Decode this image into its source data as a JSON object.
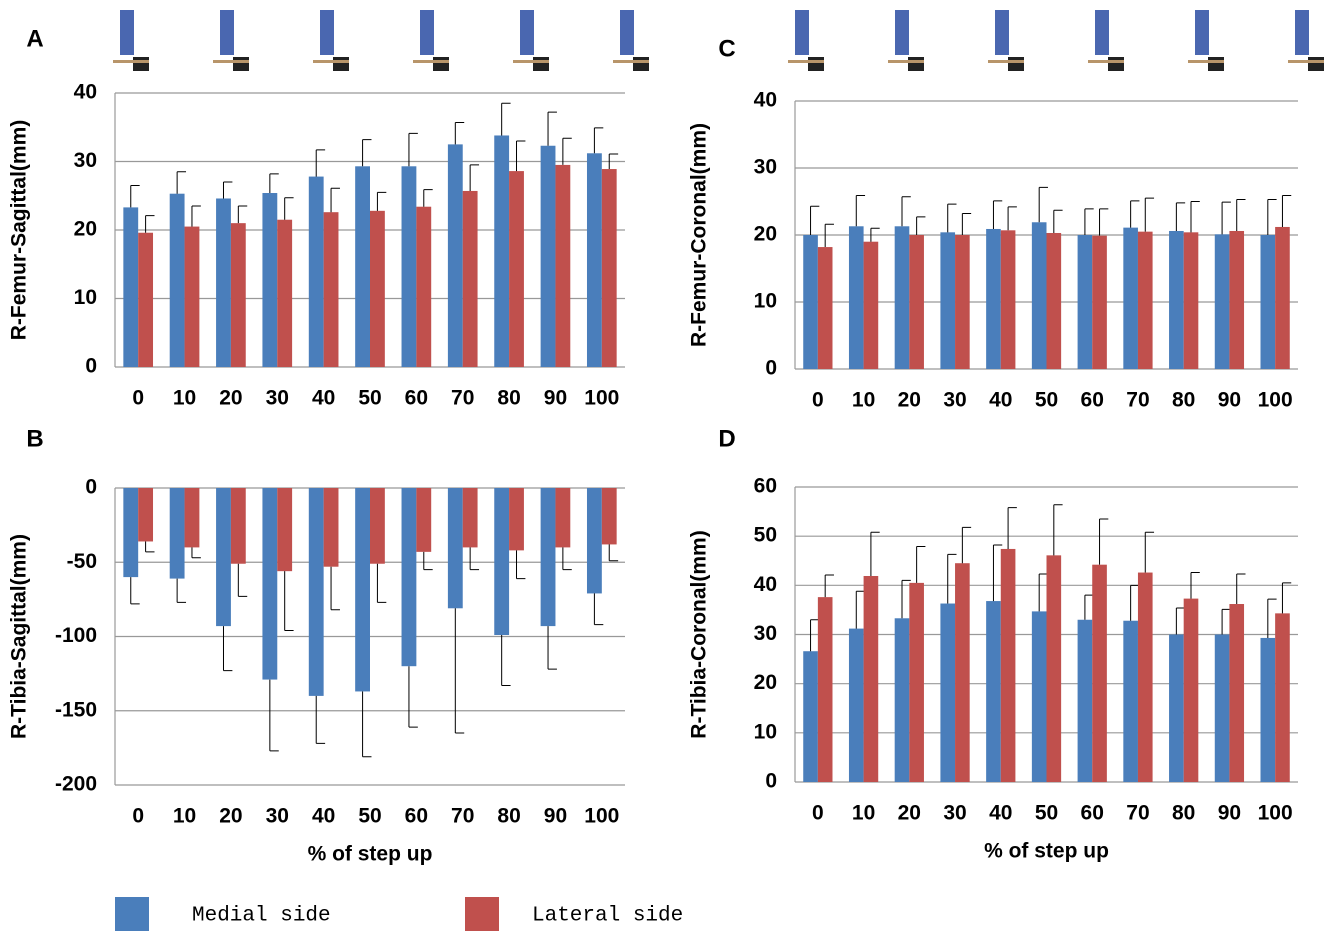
{
  "chart_data": [
    {
      "type": "bar",
      "label": "A",
      "y_label": "R-Femur-Sagittal(mm)",
      "categories": [
        "0",
        "10",
        "20",
        "30",
        "40",
        "50",
        "60",
        "70",
        "80",
        "90",
        "100"
      ],
      "ylim": [
        0,
        40
      ],
      "yticks": [
        0,
        10,
        20,
        30,
        40
      ],
      "grid": true,
      "series": [
        {
          "name": "Medial side",
          "color": "#4a7ebb",
          "values": [
            23.3,
            25.3,
            24.6,
            25.4,
            27.8,
            29.3,
            29.3,
            32.5,
            33.8,
            32.3,
            31.2
          ],
          "errors": [
            3.2,
            3.2,
            2.4,
            2.8,
            3.9,
            3.9,
            4.8,
            3.2,
            4.7,
            4.9,
            3.7
          ]
        },
        {
          "name": "Lateral side",
          "color": "#c0504d",
          "values": [
            19.6,
            20.5,
            21.0,
            21.5,
            22.6,
            22.8,
            23.4,
            25.7,
            28.6,
            29.5,
            28.9
          ],
          "errors": [
            2.5,
            3.0,
            2.5,
            3.2,
            3.5,
            2.7,
            2.5,
            3.8,
            4.4,
            3.9,
            2.2
          ]
        }
      ]
    },
    {
      "type": "bar",
      "label": "B",
      "y_label": "R-Tibia-Sagittal(mm)",
      "x_label": "% of step up",
      "categories": [
        "0",
        "10",
        "20",
        "30",
        "40",
        "50",
        "60",
        "70",
        "80",
        "90",
        "100"
      ],
      "ylim": [
        -200,
        0
      ],
      "yticks": [
        -200,
        -150,
        -100,
        -50,
        0
      ],
      "grid": true,
      "series": [
        {
          "name": "Medial side",
          "color": "#4a7ebb",
          "values": [
            -60,
            -61,
            -93,
            -129,
            -140,
            -137,
            -120,
            -81,
            -99,
            -93,
            -71
          ],
          "errors": [
            18,
            16,
            30,
            48,
            32,
            44,
            41,
            84,
            34,
            29,
            21
          ]
        },
        {
          "name": "Lateral side",
          "color": "#c0504d",
          "values": [
            -36,
            -40,
            -51,
            -56,
            -53,
            -51,
            -43,
            -40,
            -42,
            -40,
            -38
          ],
          "errors": [
            7,
            7,
            22,
            40,
            29,
            26,
            12,
            15,
            19,
            15,
            11
          ]
        }
      ]
    },
    {
      "type": "bar",
      "label": "C",
      "y_label": "R-Femur-Coronal(mm)",
      "categories": [
        "0",
        "10",
        "20",
        "30",
        "40",
        "50",
        "60",
        "70",
        "80",
        "90",
        "100"
      ],
      "ylim": [
        0,
        40
      ],
      "yticks": [
        0,
        10,
        20,
        30,
        40
      ],
      "grid": true,
      "series": [
        {
          "name": "Medial side",
          "color": "#4a7ebb",
          "values": [
            20,
            21.3,
            21.3,
            20.4,
            20.9,
            21.9,
            20,
            21.1,
            20.6,
            20.1,
            20
          ],
          "errors": [
            4.3,
            4.6,
            4.4,
            4.2,
            4.2,
            5.2,
            3.9,
            4,
            4.2,
            4.8,
            5.3
          ]
        },
        {
          "name": "Lateral side",
          "color": "#c0504d",
          "values": [
            18.2,
            19,
            20,
            20,
            20.7,
            20.3,
            19.9,
            20.5,
            20.4,
            20.6,
            21.2
          ],
          "errors": [
            3.4,
            2,
            2.7,
            3.2,
            3.5,
            3.4,
            4,
            5,
            4.6,
            4.7,
            4.7
          ]
        }
      ]
    },
    {
      "type": "bar",
      "label": "D",
      "y_label": "R-Tibia-Coronal(mm)",
      "x_label": "% of step up",
      "categories": [
        "0",
        "10",
        "20",
        "30",
        "40",
        "50",
        "60",
        "70",
        "80",
        "90",
        "100"
      ],
      "ylim": [
        0,
        60
      ],
      "yticks": [
        0,
        10,
        20,
        30,
        40,
        50,
        60
      ],
      "grid": true,
      "series": [
        {
          "name": "Medial side",
          "color": "#4a7ebb",
          "values": [
            26.6,
            31.2,
            33.3,
            36.3,
            36.8,
            34.7,
            33,
            32.8,
            30,
            30,
            29.3
          ],
          "errors": [
            6.4,
            7.6,
            7.7,
            10,
            11.4,
            7.6,
            5,
            7.2,
            5.4,
            5.1,
            7.9
          ]
        },
        {
          "name": "Lateral side",
          "color": "#c0504d",
          "values": [
            37.6,
            41.9,
            40.5,
            44.5,
            47.4,
            46.1,
            44.2,
            42.6,
            37.3,
            36.2,
            34.3
          ],
          "errors": [
            4.5,
            8.9,
            7.4,
            7.3,
            8.4,
            10.3,
            9.3,
            8.2,
            5.3,
            6.1,
            6.2
          ]
        }
      ]
    }
  ]
}
